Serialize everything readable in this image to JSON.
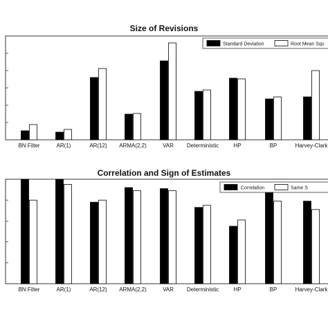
{
  "chart_data": [
    {
      "type": "bar",
      "title": "Size of Revisions",
      "categories": [
        "BN Filter",
        "AR(1)",
        "AR(12)",
        "ARMA(2,2)",
        "VAR",
        "Deterministic",
        "HP",
        "BP",
        "Harvey-Clark"
      ],
      "series": [
        {
          "name": "Standard Deviation",
          "color": "#000000",
          "values": [
            0.13,
            0.11,
            0.9,
            0.37,
            1.14,
            0.7,
            0.89,
            0.59,
            0.62
          ]
        },
        {
          "name": "Root Mean Squ",
          "color": "#ffffff",
          "values": [
            0.22,
            0.15,
            1.03,
            0.38,
            1.4,
            0.72,
            0.88,
            0.62,
            1.0
          ]
        }
      ],
      "ylim": [
        0,
        1.5
      ],
      "legend": "top-right",
      "grid": false
    },
    {
      "type": "bar",
      "title": "Correlation and Sign of Estimates",
      "categories": [
        "BN Filter",
        "AR(1)",
        "AR(12)",
        "ARMA(2,2)",
        "VAR",
        "Deterministic",
        "HP",
        "BP",
        "Harvey-Clark"
      ],
      "series": [
        {
          "name": "Correlation",
          "color": "#000000",
          "values": [
            1.0,
            1.0,
            0.78,
            0.92,
            0.91,
            0.73,
            0.55,
            0.95,
            0.79
          ]
        },
        {
          "name": "Same S",
          "color": "#ffffff",
          "values": [
            0.8,
            0.95,
            0.8,
            0.89,
            0.89,
            0.75,
            0.61,
            0.79,
            0.71
          ]
        }
      ],
      "ylim": [
        0,
        1.0
      ],
      "legend": "top-right",
      "grid": false
    }
  ]
}
